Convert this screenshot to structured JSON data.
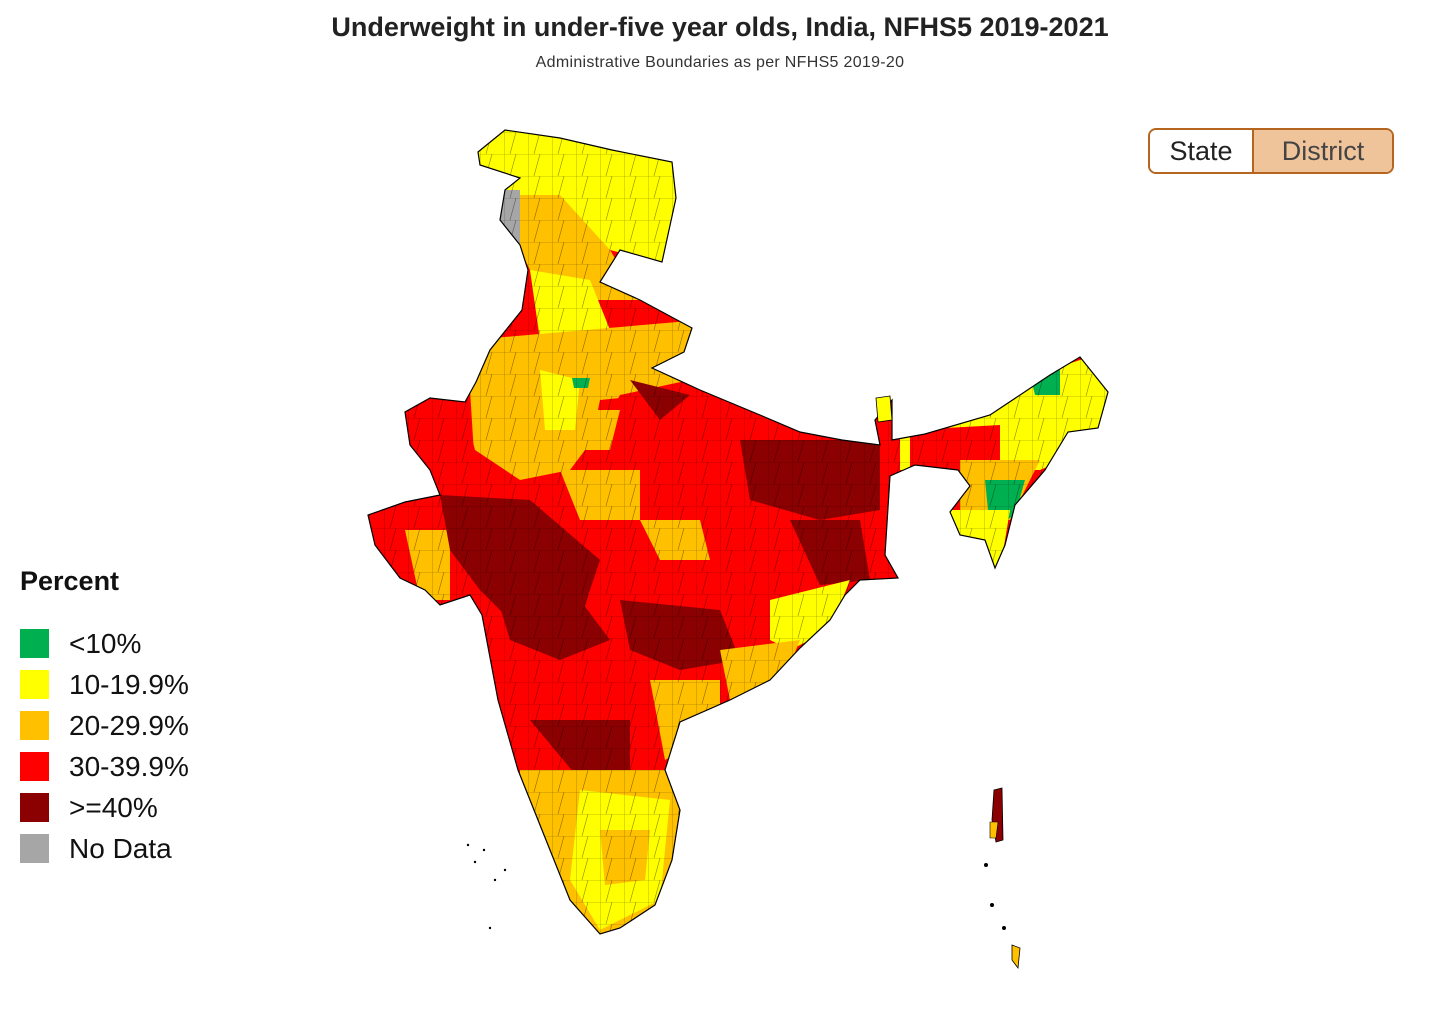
{
  "title": "Underweight in under-five year olds, India, NFHS5 2019-2021",
  "subtitle": "Administrative Boundaries as per NFHS5 2019-20",
  "toggle": {
    "state_label": "State",
    "district_label": "District",
    "selected": "District",
    "selected_color": "#f0c49a"
  },
  "legend": {
    "title": "Percent",
    "items": [
      {
        "label": "<10%",
        "color": "#00b050"
      },
      {
        "label": "10-19.9%",
        "color": "#ffff00"
      },
      {
        "label": "20-29.9%",
        "color": "#ffc000"
      },
      {
        "label": "30-39.9%",
        "color": "#ff0000"
      },
      {
        "label": ">=40%",
        "color": "#8b0000"
      },
      {
        "label": "No Data",
        "color": "#a6a6a6"
      }
    ]
  }
}
